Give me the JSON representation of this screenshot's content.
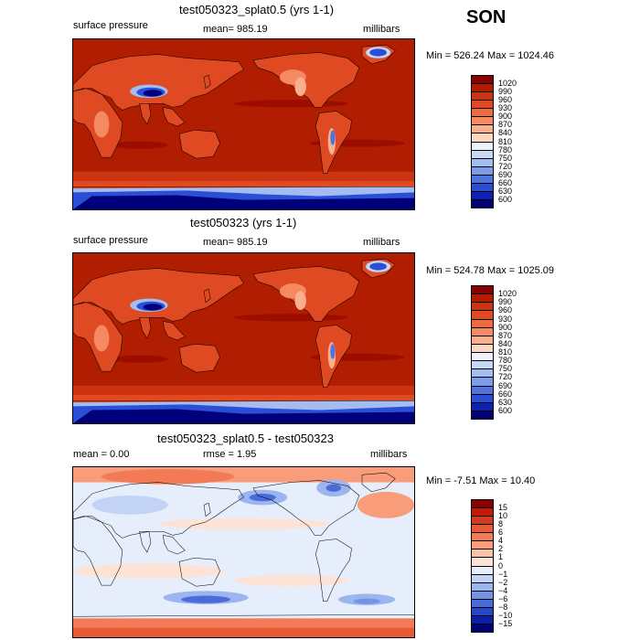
{
  "season": "SON",
  "panels": [
    {
      "title": "test050323_splat0.5 (yrs 1-1)",
      "left_label": "surface pressure",
      "center_label": "mean= 985.19",
      "right_label": "millibars",
      "minmax": "Min = 526.24 Max = 1024.46",
      "kind": "abs"
    },
    {
      "title": "test050323 (yrs 1-1)",
      "left_label": "surface pressure",
      "center_label": "mean= 985.19",
      "right_label": "millibars",
      "minmax": "Min = 524.78 Max = 1025.09",
      "kind": "abs"
    },
    {
      "title": "test050323_splat0.5 - test050323",
      "left_label": "mean =    0.00",
      "center_label": "rmse =    1.95",
      "right_label": "millibars",
      "minmax": "Min =  -7.51 Max =  10.40",
      "kind": "diff"
    }
  ],
  "chart_data": [
    {
      "type": "heatmap",
      "title": "test050323_splat0.5 (yrs 1-1)",
      "variable": "surface pressure",
      "units": "millibars",
      "mean": 985.19,
      "min": 526.24,
      "max": 1024.46,
      "colorbar_levels": [
        "1020",
        "990",
        "960",
        "930",
        "900",
        "870",
        "840",
        "810",
        "780",
        "750",
        "720",
        "690",
        "660",
        "630",
        "600"
      ],
      "colorbar_colors": [
        "#8b0000",
        "#b11d00",
        "#cc3311",
        "#e04a22",
        "#ee6a40",
        "#f58a62",
        "#fab08e",
        "#fdd7c0",
        "#eef2fc",
        "#c7d8f7",
        "#a3bdf0",
        "#7b9ce8",
        "#5073df",
        "#2a4ed6",
        "#0d22b0",
        "#00007a"
      ]
    },
    {
      "type": "heatmap",
      "title": "test050323 (yrs 1-1)",
      "variable": "surface pressure",
      "units": "millibars",
      "mean": 985.19,
      "min": 524.78,
      "max": 1025.09,
      "colorbar_levels": [
        "1020",
        "990",
        "960",
        "930",
        "900",
        "870",
        "840",
        "810",
        "780",
        "750",
        "720",
        "690",
        "660",
        "630",
        "600"
      ],
      "colorbar_colors": [
        "#8b0000",
        "#b11d00",
        "#cc3311",
        "#e04a22",
        "#ee6a40",
        "#f58a62",
        "#fab08e",
        "#fdd7c0",
        "#eef2fc",
        "#c7d8f7",
        "#a3bdf0",
        "#7b9ce8",
        "#5073df",
        "#2a4ed6",
        "#0d22b0",
        "#00007a"
      ]
    },
    {
      "type": "heatmap",
      "title": "test050323_splat0.5 - test050323",
      "units": "millibars",
      "mean": 0.0,
      "rmse": 1.95,
      "min": -7.51,
      "max": 10.4,
      "colorbar_levels": [
        "15",
        "10",
        "8",
        "6",
        "4",
        "2",
        "1",
        "0",
        "−1",
        "−2",
        "−4",
        "−6",
        "−8",
        "−10",
        "−15"
      ],
      "colorbar_colors": [
        "#8b0000",
        "#c21b0a",
        "#d63a1e",
        "#e85a36",
        "#f27a55",
        "#f89c7a",
        "#fcc2a6",
        "#fde3d5",
        "#e6eefc",
        "#c2d3f6",
        "#9cb5ef",
        "#7393e5",
        "#4a6cdb",
        "#2446cd",
        "#0b1fa8",
        "#00007a"
      ]
    }
  ]
}
